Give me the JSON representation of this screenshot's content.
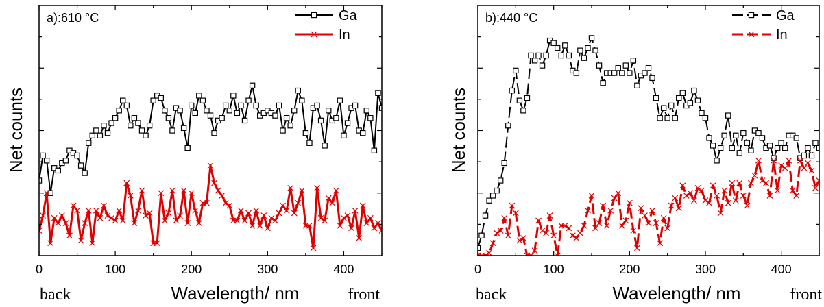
{
  "chart_data": [
    {
      "type": "line",
      "title": "a):610 °C",
      "xlabel": "Wavelength/ nm",
      "ylabel": "Net  counts",
      "xlim": [
        0,
        450
      ],
      "ylim": [
        0,
        100
      ],
      "x_ticks": [
        0,
        100,
        200,
        300,
        400
      ],
      "y_ticks_labeled": false,
      "legend": "top-right",
      "annotations": {
        "left": "back",
        "right": "front"
      },
      "series": [
        {
          "name": "Ga",
          "color": "#000000",
          "marker": "square",
          "dashed": false,
          "x": [
            0,
            5,
            10,
            15,
            20,
            25,
            30,
            35,
            40,
            45,
            50,
            55,
            60,
            65,
            70,
            75,
            80,
            85,
            90,
            95,
            100,
            105,
            110,
            115,
            120,
            125,
            130,
            135,
            140,
            145,
            150,
            155,
            160,
            165,
            170,
            175,
            180,
            185,
            190,
            195,
            200,
            205,
            210,
            215,
            220,
            225,
            230,
            235,
            240,
            245,
            250,
            255,
            260,
            265,
            270,
            275,
            280,
            285,
            290,
            295,
            300,
            305,
            310,
            315,
            320,
            325,
            330,
            335,
            340,
            345,
            350,
            355,
            360,
            365,
            370,
            375,
            380,
            385,
            390,
            395,
            400,
            405,
            410,
            415,
            420,
            425,
            430,
            435,
            440,
            445,
            450
          ],
          "y": [
            30,
            40,
            38,
            25,
            35,
            34,
            37,
            38,
            42,
            41,
            40,
            36,
            33,
            45,
            48,
            50,
            48,
            52,
            49,
            53,
            55,
            58,
            62,
            60,
            52,
            55,
            53,
            50,
            48,
            52,
            62,
            64,
            63,
            58,
            55,
            50,
            59,
            58,
            51,
            43,
            60,
            57,
            64,
            62,
            58,
            56,
            49,
            54,
            55,
            60,
            58,
            64,
            57,
            60,
            54,
            62,
            68,
            60,
            56,
            57,
            58,
            57,
            56,
            60,
            50,
            55,
            52,
            58,
            66,
            62,
            49,
            45,
            59,
            60,
            54,
            44,
            58,
            54,
            55,
            62,
            48,
            53,
            59,
            60,
            50,
            49,
            58,
            55,
            42,
            65,
            59
          ]
        },
        {
          "name": "In",
          "color": "#e00000",
          "marker": "x",
          "dashed": false,
          "x": [
            0,
            5,
            10,
            15,
            20,
            25,
            30,
            35,
            40,
            45,
            50,
            55,
            60,
            65,
            70,
            75,
            80,
            85,
            90,
            95,
            100,
            105,
            110,
            115,
            120,
            125,
            130,
            135,
            140,
            145,
            150,
            155,
            160,
            165,
            170,
            175,
            180,
            185,
            190,
            195,
            200,
            205,
            210,
            215,
            220,
            225,
            230,
            235,
            240,
            245,
            250,
            255,
            260,
            265,
            270,
            275,
            280,
            285,
            290,
            295,
            300,
            305,
            310,
            315,
            320,
            325,
            330,
            335,
            340,
            345,
            350,
            355,
            360,
            365,
            370,
            375,
            380,
            385,
            390,
            395,
            400,
            405,
            410,
            415,
            420,
            425,
            430,
            435,
            440,
            445,
            450
          ],
          "y": [
            10,
            16,
            25,
            5,
            15,
            13,
            16,
            13,
            8,
            20,
            18,
            6,
            13,
            18,
            5,
            18,
            15,
            20,
            16,
            15,
            14,
            18,
            14,
            29,
            24,
            13,
            18,
            26,
            16,
            17,
            5,
            5,
            25,
            14,
            17,
            26,
            14,
            16,
            26,
            13,
            25,
            18,
            13,
            21,
            21,
            36,
            29,
            26,
            24,
            21,
            20,
            14,
            14,
            18,
            14,
            17,
            12,
            18,
            12,
            16,
            11,
            15,
            14,
            17,
            20,
            18,
            27,
            17,
            21,
            26,
            12,
            12,
            3,
            27,
            15,
            14,
            23,
            21,
            26,
            12,
            15,
            16,
            11,
            18,
            7,
            20,
            13,
            15,
            11,
            13,
            10
          ]
        }
      ]
    },
    {
      "type": "line",
      "title": "b):440 °C",
      "xlabel": "Wavelength/ nm",
      "ylabel": "Net  counts",
      "xlim": [
        0,
        450
      ],
      "ylim": [
        0,
        100
      ],
      "x_ticks": [
        0,
        100,
        200,
        300,
        400
      ],
      "y_ticks_labeled": false,
      "legend": "top-right",
      "annotations": {
        "left": "back",
        "right": "front"
      },
      "series": [
        {
          "name": "Ga",
          "color": "#000000",
          "marker": "square",
          "dashed": true,
          "x": [
            0,
            5,
            10,
            15,
            20,
            25,
            30,
            35,
            40,
            45,
            50,
            55,
            60,
            65,
            70,
            75,
            80,
            85,
            90,
            95,
            100,
            105,
            110,
            115,
            120,
            125,
            130,
            135,
            140,
            145,
            150,
            155,
            160,
            165,
            170,
            175,
            180,
            185,
            190,
            195,
            200,
            205,
            210,
            215,
            220,
            225,
            230,
            235,
            240,
            245,
            250,
            255,
            260,
            265,
            270,
            275,
            280,
            285,
            290,
            295,
            300,
            305,
            310,
            315,
            320,
            325,
            330,
            335,
            340,
            345,
            350,
            355,
            360,
            365,
            370,
            375,
            380,
            385,
            390,
            395,
            400,
            405,
            410,
            415,
            420,
            425,
            430,
            435,
            440,
            445,
            450
          ],
          "y": [
            3,
            8,
            16,
            22,
            24,
            26,
            30,
            37,
            52,
            66,
            74,
            62,
            58,
            63,
            80,
            78,
            80,
            76,
            80,
            86,
            85,
            83,
            80,
            84,
            80,
            74,
            73,
            82,
            79,
            83,
            87,
            82,
            76,
            69,
            73,
            73,
            73,
            75,
            73,
            76,
            73,
            78,
            68,
            72,
            73,
            75,
            71,
            63,
            55,
            59,
            55,
            60,
            55,
            63,
            65,
            60,
            61,
            66,
            62,
            57,
            55,
            47,
            44,
            38,
            43,
            48,
            56,
            43,
            48,
            41,
            49,
            45,
            42,
            50,
            49,
            47,
            43,
            44,
            39,
            43,
            45,
            43,
            48,
            48,
            47,
            39,
            40,
            43,
            40,
            45,
            43
          ]
        },
        {
          "name": "In",
          "color": "#e00000",
          "marker": "x",
          "dashed": true,
          "x": [
            0,
            5,
            10,
            15,
            20,
            25,
            30,
            35,
            40,
            45,
            50,
            55,
            60,
            65,
            70,
            75,
            80,
            85,
            90,
            95,
            100,
            105,
            110,
            115,
            120,
            125,
            130,
            135,
            140,
            145,
            150,
            155,
            160,
            165,
            170,
            175,
            180,
            185,
            190,
            195,
            200,
            205,
            210,
            215,
            220,
            225,
            230,
            235,
            240,
            245,
            250,
            255,
            260,
            265,
            270,
            275,
            280,
            285,
            290,
            295,
            300,
            305,
            310,
            315,
            320,
            325,
            330,
            335,
            340,
            345,
            350,
            355,
            360,
            365,
            370,
            375,
            380,
            385,
            390,
            395,
            400,
            405,
            410,
            415,
            420,
            425,
            430,
            435,
            440,
            445,
            450
          ],
          "y": [
            0,
            0,
            0,
            1,
            5,
            9,
            10,
            15,
            8,
            20,
            17,
            6,
            7,
            0,
            0,
            2,
            14,
            10,
            9,
            16,
            8,
            0,
            12,
            12,
            11,
            8,
            7,
            9,
            12,
            18,
            24,
            11,
            13,
            20,
            12,
            18,
            23,
            25,
            12,
            14,
            21,
            10,
            3,
            19,
            16,
            13,
            18,
            13,
            5,
            15,
            11,
            20,
            23,
            19,
            28,
            24,
            25,
            22,
            27,
            26,
            22,
            21,
            28,
            24,
            17,
            26,
            21,
            29,
            22,
            29,
            24,
            20,
            29,
            32,
            38,
            30,
            29,
            24,
            38,
            26,
            36,
            35,
            38,
            26,
            24,
            38,
            35,
            37,
            34,
            27,
            30
          ]
        }
      ]
    }
  ]
}
